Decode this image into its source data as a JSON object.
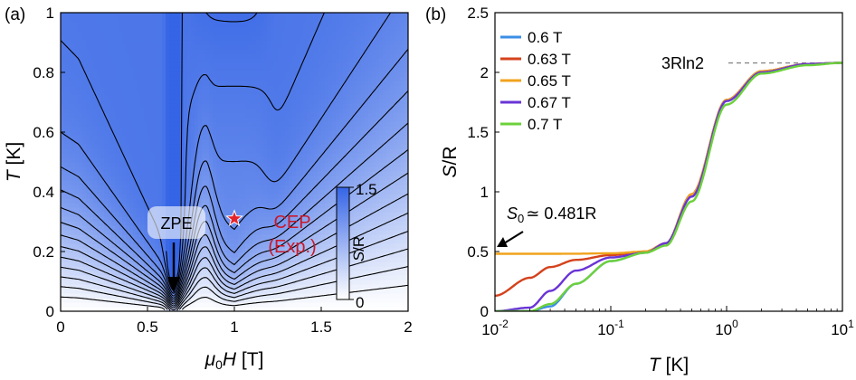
{
  "chart_data": [
    {
      "type": "heatmap",
      "panel_label": "(a)",
      "xlabel_prefix": "μ",
      "xlabel_sub": "0",
      "xlabel_var": "H",
      "xlabel_unit": "[T]",
      "ylabel_var": "T",
      "ylabel_unit": "[K]",
      "xlim": [
        0,
        2
      ],
      "ylim": [
        0,
        1
      ],
      "xticks": [
        "0",
        "0.5",
        "1",
        "1.5",
        "2"
      ],
      "yticks": [
        "0",
        "0.2",
        "0.4",
        "0.6",
        "0.8",
        "1"
      ],
      "colorbar": {
        "label_var": "S",
        "label_unit": "/R",
        "min": 0,
        "max": 1.5,
        "min_label": "0",
        "max_label": "1.5",
        "color_low": "#ffffff",
        "color_high": "#3565e6"
      },
      "contour_levels": [
        0.1,
        0.2,
        0.3,
        0.4,
        0.5,
        0.6,
        0.7,
        0.8,
        0.9,
        1.0,
        1.1,
        1.2,
        1.3,
        1.4
      ],
      "markers": {
        "zpe": {
          "label": "ZPE",
          "x": 0.65,
          "y": 0
        },
        "cep": {
          "label_line1": "CEP",
          "label_line2": "(Exp.)",
          "x": 1.0,
          "y": 0.31,
          "color": "#e5232b"
        }
      }
    },
    {
      "type": "line",
      "panel_label": "(b)",
      "xlabel_var": "T",
      "xlabel_unit": "[K]",
      "ylabel_var": "S",
      "ylabel_unit": "/R",
      "xscale": "log",
      "xlim": [
        0.01,
        10
      ],
      "ylim": [
        0,
        2.5
      ],
      "xtick_bases": [
        "10",
        "10",
        "10",
        "10"
      ],
      "xtick_exponents": [
        "-2",
        "-1",
        "0",
        "1"
      ],
      "yticks": [
        "0",
        "0.5",
        "1",
        "1.5",
        "2",
        "2.5"
      ],
      "legend_position": "top-left",
      "series": [
        {
          "name": "0.6 T",
          "color": "#3a8ee6",
          "T": [
            0.01,
            0.02,
            0.03,
            0.05,
            0.1,
            0.2,
            0.3,
            0.5,
            1,
            2,
            5,
            10
          ],
          "S": [
            0.0,
            0.0,
            0.04,
            0.23,
            0.42,
            0.49,
            0.57,
            0.98,
            1.77,
            2.01,
            2.07,
            2.08
          ]
        },
        {
          "name": "0.63 T",
          "color": "#d4421c",
          "T": [
            0.01,
            0.02,
            0.03,
            0.05,
            0.1,
            0.2,
            0.3,
            0.5,
            1,
            2,
            5,
            10
          ],
          "S": [
            0.13,
            0.28,
            0.37,
            0.43,
            0.47,
            0.5,
            0.57,
            0.98,
            1.77,
            2.01,
            2.07,
            2.08
          ]
        },
        {
          "name": "0.65 T",
          "color": "#f0a31c",
          "T": [
            0.01,
            0.02,
            0.03,
            0.05,
            0.1,
            0.2,
            0.3,
            0.5,
            1,
            2,
            5,
            10
          ],
          "S": [
            0.481,
            0.481,
            0.481,
            0.482,
            0.485,
            0.5,
            0.57,
            0.98,
            1.77,
            2.01,
            2.07,
            2.08
          ]
        },
        {
          "name": "0.67 T",
          "color": "#6a34d6",
          "T": [
            0.01,
            0.02,
            0.03,
            0.05,
            0.1,
            0.2,
            0.3,
            0.5,
            1,
            2,
            5,
            10
          ],
          "S": [
            0.0,
            0.03,
            0.17,
            0.34,
            0.45,
            0.49,
            0.57,
            0.96,
            1.76,
            2.0,
            2.07,
            2.08
          ]
        },
        {
          "name": "0.7 T",
          "color": "#6cd13b",
          "T": [
            0.01,
            0.02,
            0.03,
            0.05,
            0.1,
            0.2,
            0.3,
            0.5,
            1,
            2,
            5,
            10
          ],
          "S": [
            0.0,
            0.0,
            0.06,
            0.23,
            0.42,
            0.49,
            0.55,
            0.92,
            1.73,
            1.99,
            2.06,
            2.08
          ]
        }
      ],
      "annotations": {
        "saturation": {
          "label": "3Rln2",
          "y": 2.079
        },
        "s0": {
          "var": "S",
          "sub": "0",
          "rest": "≃ 0.481R",
          "x": 0.01,
          "y": 0.481
        }
      }
    }
  ]
}
